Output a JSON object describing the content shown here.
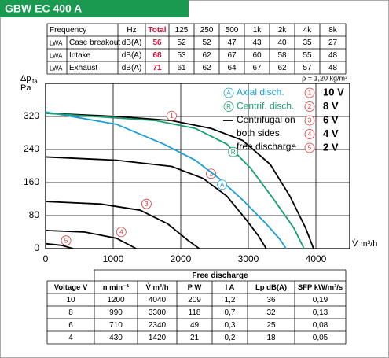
{
  "header": {
    "title": "GBW EC 400 A"
  },
  "top_table": {
    "header": [
      "Frequency",
      "Hz",
      "Total",
      "125",
      "250",
      "500",
      "1k",
      "2k",
      "4k",
      "8k"
    ],
    "rows": [
      [
        "LWA",
        "Case breakout",
        "dB(A)",
        "56",
        "52",
        "52",
        "47",
        "43",
        "40",
        "35",
        "27"
      ],
      [
        "LWA",
        "Intake",
        "dB(A)",
        "68",
        "53",
        "62",
        "67",
        "60",
        "58",
        "55",
        "48"
      ],
      [
        "LWA",
        "Exhaust",
        "dB(A)",
        "71",
        "61",
        "62",
        "64",
        "67",
        "62",
        "57",
        "48"
      ]
    ]
  },
  "chart_data": {
    "type": "line",
    "y_label": "Δp",
    "y_label_sub": "fa",
    "y_unit": "Pa",
    "x_label": "V̇ m³/h",
    "note": "ρ = 1,20 kg/m³",
    "xlim": [
      0,
      4500
    ],
    "ylim": [
      0,
      400
    ],
    "xticks": [
      0,
      1000,
      2000,
      3000,
      4000
    ],
    "yticks": [
      0,
      80,
      160,
      240,
      320
    ],
    "grid": true,
    "series": [
      {
        "name": "10 V",
        "marker": "1",
        "color": "#000000",
        "x": [
          0,
          1050,
          1866,
          2450,
          2915,
          3324,
          3615,
          3848,
          3965
        ],
        "values": [
          328,
          320,
          310,
          291,
          262,
          204,
          127,
          50,
          0
        ]
      },
      {
        "name": "8 V",
        "marker": "2",
        "color": "#000000",
        "x": [
          0,
          1050,
          1866,
          2332,
          2682,
          2974,
          3149,
          3265
        ],
        "values": [
          222,
          214,
          199,
          170,
          127,
          69,
          31,
          0
        ]
      },
      {
        "name": "6 V",
        "marker": "3",
        "color": "#000000",
        "x": [
          0,
          816,
          1400,
          1808,
          2099,
          2274
        ],
        "values": [
          114,
          108,
          93,
          60,
          21,
          0
        ]
      },
      {
        "name": "4 V",
        "marker": "4",
        "color": "#000000",
        "x": [
          0,
          583,
          1050,
          1341
        ],
        "values": [
          44,
          40,
          25,
          0
        ]
      },
      {
        "name": "2 V",
        "marker": "5",
        "color": "#000000",
        "x": [
          0,
          233,
          408
        ],
        "values": [
          12,
          8,
          0
        ]
      },
      {
        "name": "Axial disch.",
        "marker": "A",
        "color": "#1aa0d8",
        "x": [
          0,
          1050,
          1749,
          2216,
          2566,
          2915,
          3265,
          3475,
          3557
        ],
        "values": [
          331,
          301,
          253,
          214,
          170,
          118,
          60,
          21,
          0
        ]
      },
      {
        "name": "Centrif. disch.",
        "marker": "R",
        "color": "#18a070",
        "x": [
          0,
          1633,
          2216,
          2682,
          3032,
          3382,
          3673,
          3825
        ],
        "values": [
          328,
          310,
          291,
          253,
          195,
          118,
          50,
          0
        ]
      }
    ],
    "legend_note": [
      "Centrifugal on",
      "both sides,",
      "free discharge"
    ]
  },
  "bottom_table": {
    "title": "Free discharge",
    "header": [
      "Voltage V",
      "n min⁻¹",
      "V̇ m³/h",
      "P W",
      "I A",
      "Lp dB(A)",
      "SFP kW/m³/s"
    ],
    "rows": [
      [
        "10",
        "1200",
        "4040",
        "209",
        "1,2",
        "36",
        "0,19"
      ],
      [
        "8",
        "990",
        "3300",
        "118",
        "0,7",
        "32",
        "0,13"
      ],
      [
        "6",
        "710",
        "2340",
        "49",
        "0,3",
        "25",
        "0,08"
      ],
      [
        "4",
        "430",
        "1420",
        "21",
        "0,2",
        "18",
        "0,05"
      ]
    ]
  }
}
